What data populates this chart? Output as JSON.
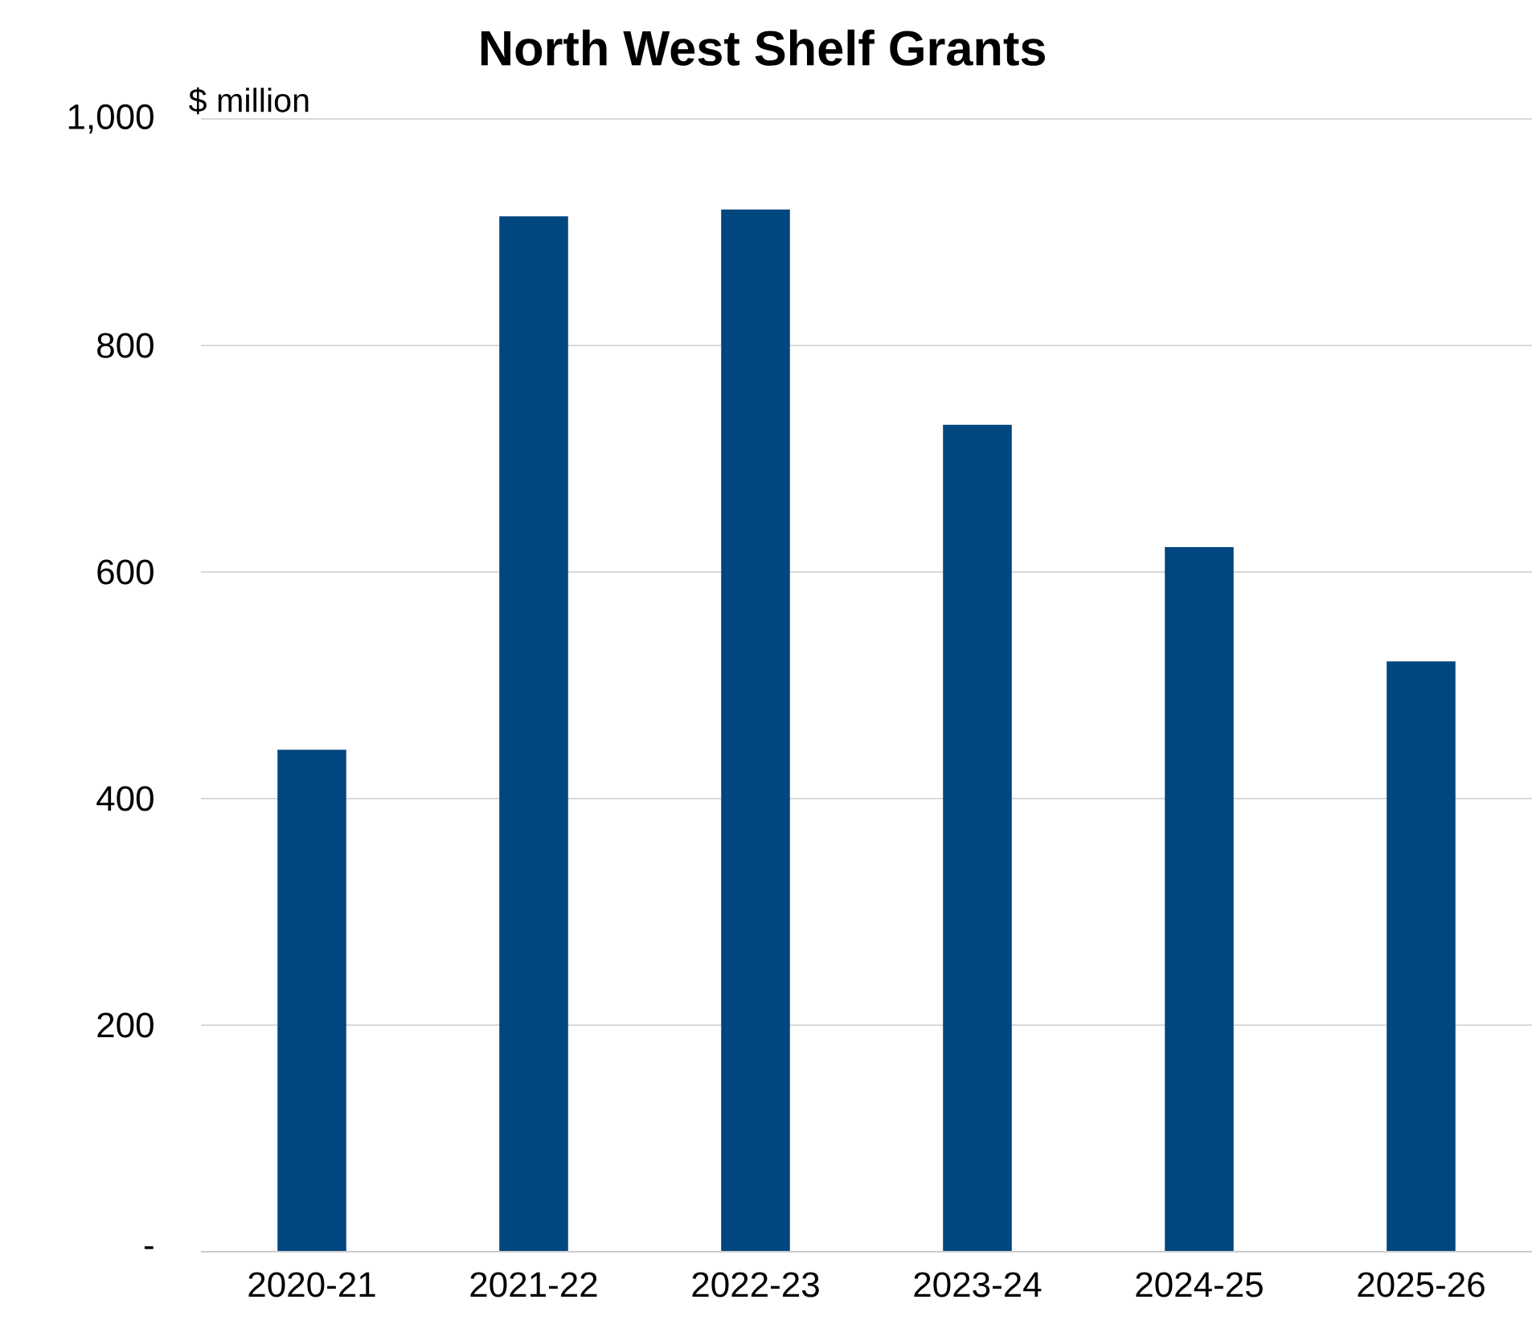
{
  "chart_data": {
    "type": "bar",
    "title": "North West Shelf Grants",
    "ylabel": "$ million",
    "categories": [
      "2020-21",
      "2021-22",
      "2022-23",
      "2023-24",
      "2024-25",
      "2025-26"
    ],
    "values": [
      443,
      914,
      920,
      730,
      622,
      521
    ],
    "color": "#00467f",
    "ylim": [
      0,
      1000
    ],
    "yticks": [
      {
        "value": 0,
        "label": "-"
      },
      200,
      400,
      600,
      800,
      {
        "value": 1000,
        "label": "1,000"
      }
    ],
    "grid": "y"
  }
}
